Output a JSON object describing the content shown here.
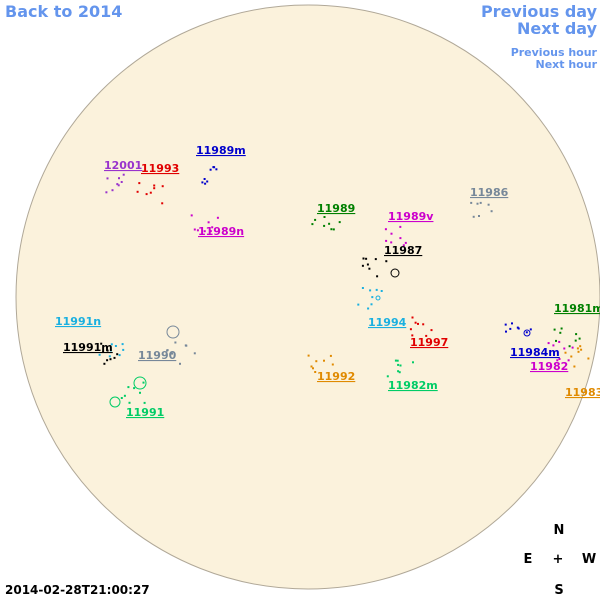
{
  "nav": {
    "back": "Back to 2014",
    "prev_day": "Previous day",
    "next_day": "Next day",
    "prev_hour": "Previous hour",
    "next_hour": "Next hour"
  },
  "regions": [
    {
      "label": "12001",
      "color": "#9933cc"
    },
    {
      "label": "11993",
      "color": "#e00000"
    },
    {
      "label": "11989m",
      "color": "#0000cc"
    },
    {
      "label": "11989",
      "color": "#008000"
    },
    {
      "label": "11989v",
      "color": "#cc00cc"
    },
    {
      "label": "11986",
      "color": "#778899"
    },
    {
      "label": "11989n",
      "color": "#cc00cc"
    },
    {
      "label": "11987",
      "color": "#000000"
    },
    {
      "label": "11994",
      "color": "#1ab0e0"
    },
    {
      "label": "11997",
      "color": "#e00000"
    },
    {
      "label": "11991n",
      "color": "#1ab0e0"
    },
    {
      "label": "11991m",
      "color": "#000000"
    },
    {
      "label": "11990",
      "color": "#778899"
    },
    {
      "label": "11992",
      "color": "#e08a00"
    },
    {
      "label": "11982m",
      "color": "#00cc66"
    },
    {
      "label": "11991",
      "color": "#00cc66"
    },
    {
      "label": "11981m",
      "color": "#008000"
    },
    {
      "label": "11984m",
      "color": "#0000cc"
    },
    {
      "label": "11982",
      "color": "#cc00cc"
    },
    {
      "label": "11983",
      "color": "#e08a00"
    }
  ],
  "timestamp": "2014-02-28T21:00:27",
  "compass": {
    "n": "N",
    "e": "E",
    "center": "+",
    "w": "W",
    "s": "S"
  }
}
